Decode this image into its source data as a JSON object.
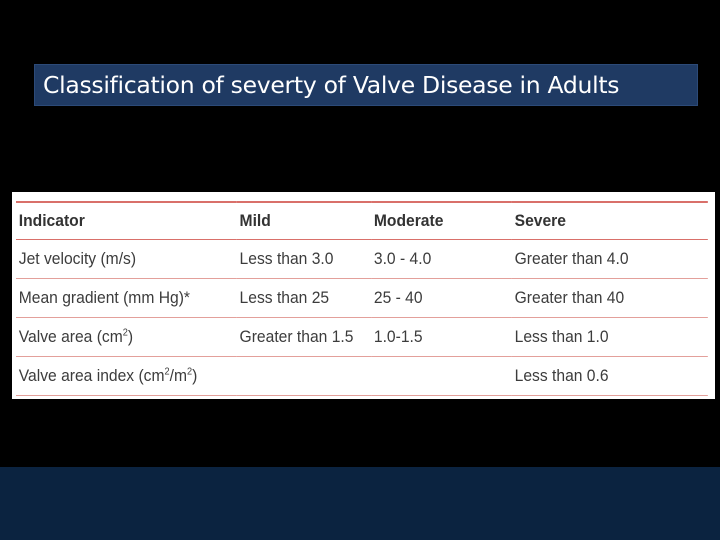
{
  "title": "Classification of severty of Valve Disease in Adults",
  "table": {
    "headers": [
      "Indicator",
      "Mild",
      "Moderate",
      "Severe"
    ],
    "rows": [
      {
        "indicator": {
          "base": "Jet velocity (m/s)",
          "sup": "",
          "tail": ""
        },
        "mild": "Less than 3.0",
        "moderate": "3.0 - 4.0",
        "severe": "Greater than 4.0"
      },
      {
        "indicator": {
          "base": "Mean gradient (mm Hg)*",
          "sup": "",
          "tail": ""
        },
        "mild": "Less than 25",
        "moderate": "25 - 40",
        "severe": "Greater than 40"
      },
      {
        "indicator": {
          "base": "Valve area (cm",
          "sup": "2",
          "tail": ")"
        },
        "mild": "Greater than 1.5",
        "moderate": "1.0-1.5",
        "severe": "Less than 1.0"
      },
      {
        "indicator": {
          "base": "Valve area index (cm",
          "sup": "2",
          "mid": "/m",
          "sup2": "2",
          "tail": ")"
        },
        "mild": "",
        "moderate": "",
        "severe": "Less than 0.6"
      }
    ]
  },
  "colors": {
    "background": "#000000",
    "title_bg": "#1f3a63",
    "rule": "#d9706a",
    "footer": "#0b2340"
  }
}
